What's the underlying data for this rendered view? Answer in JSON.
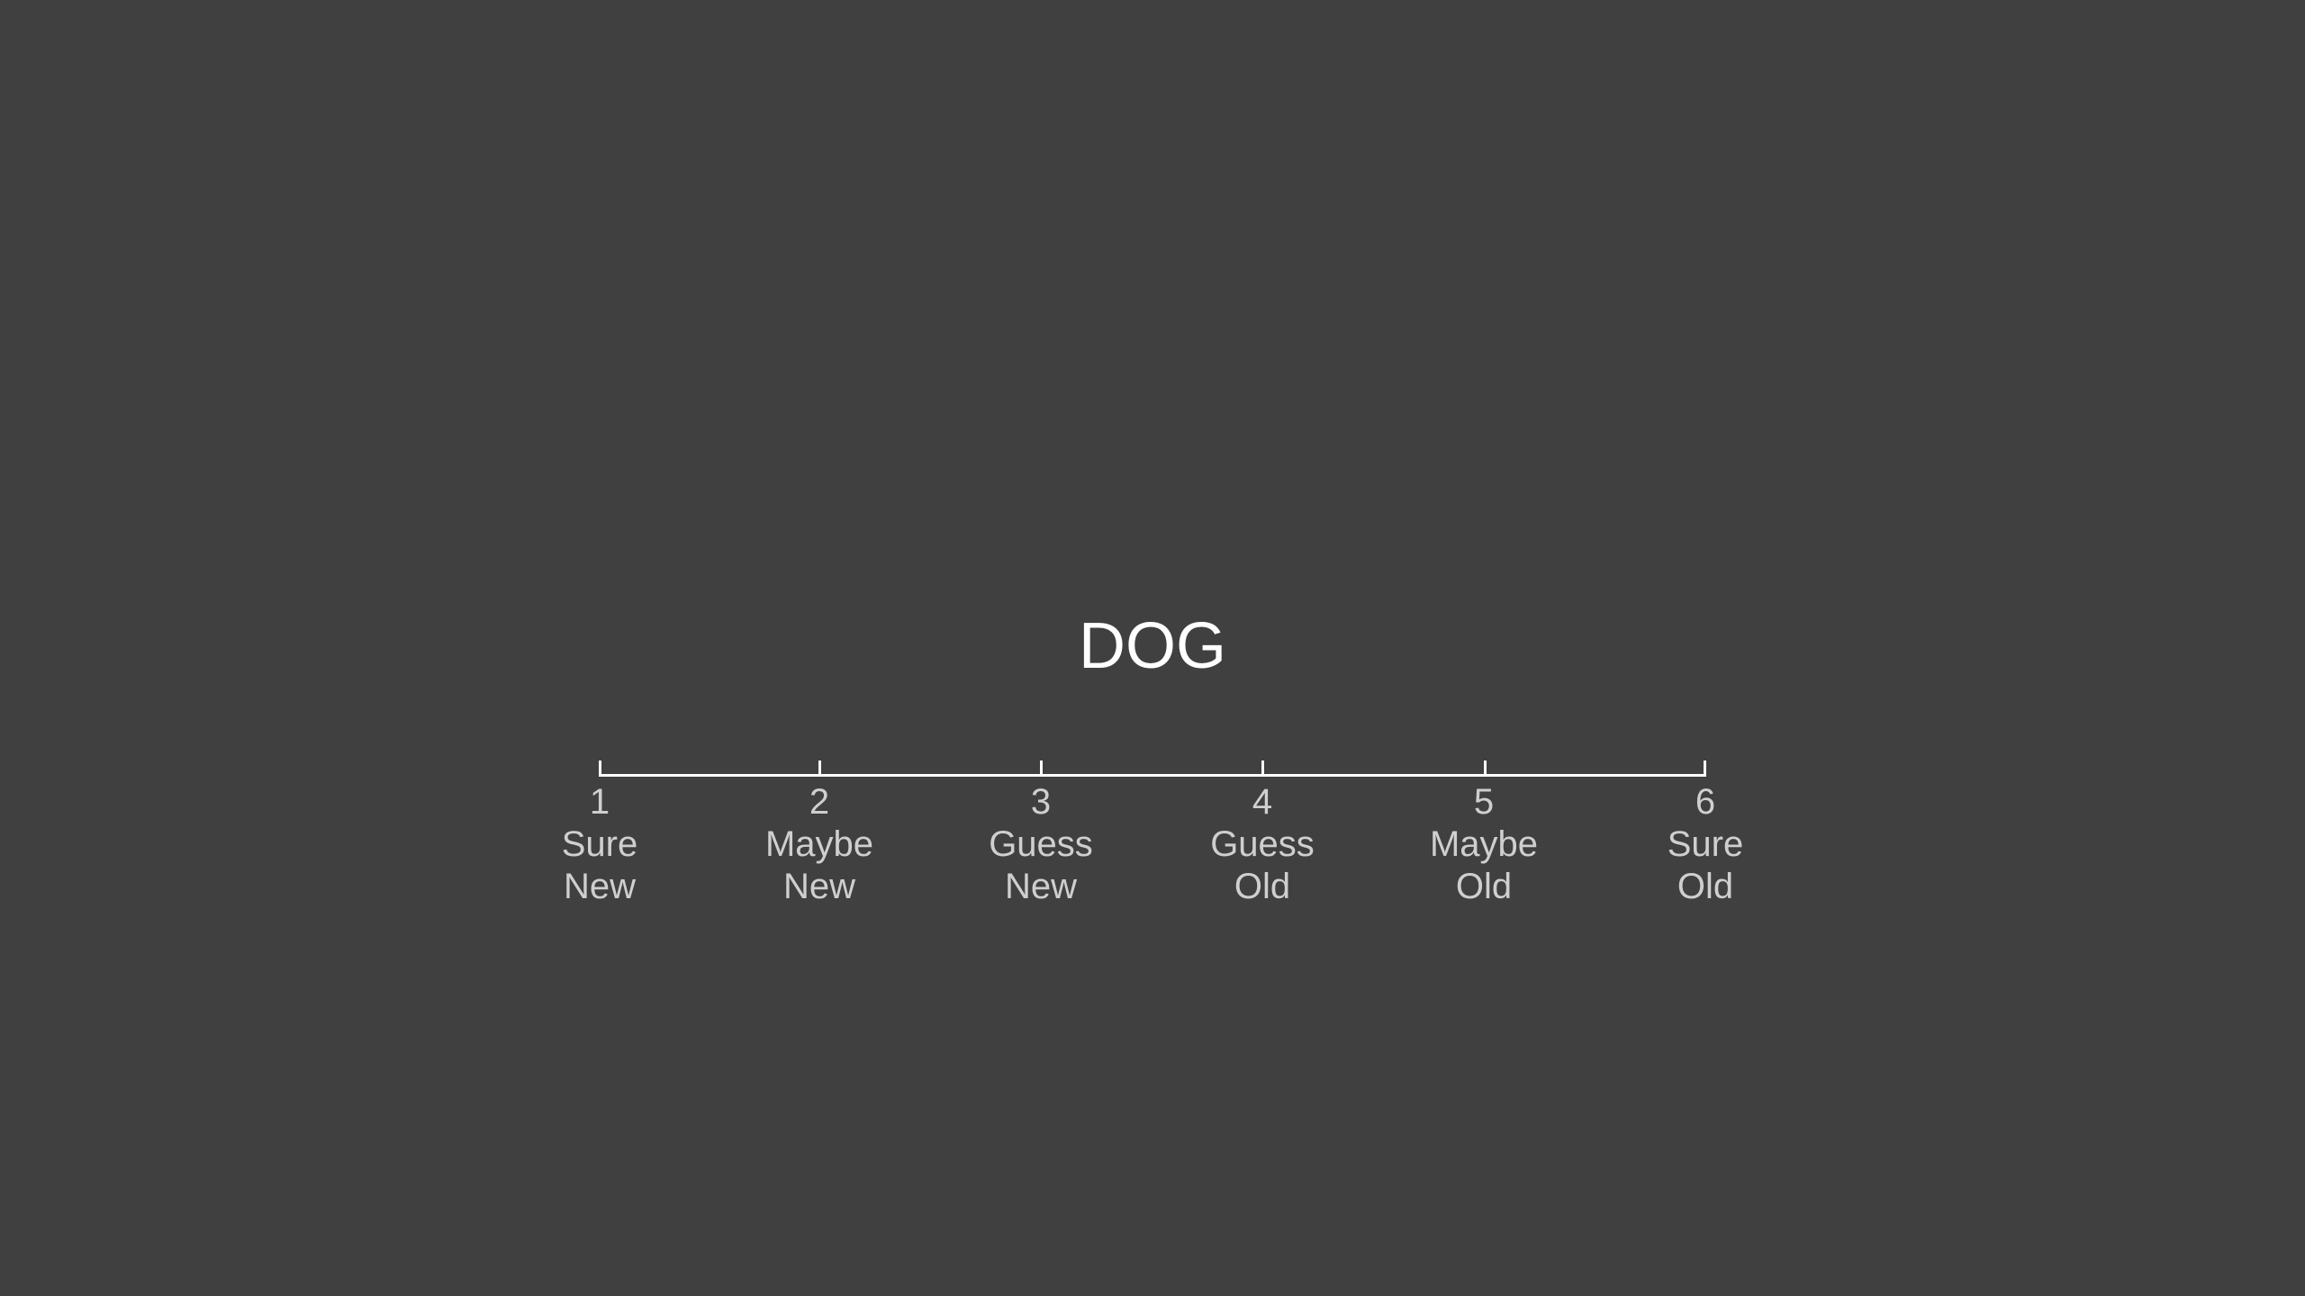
{
  "stimulus": {
    "word": "DOG"
  },
  "rating_scale": {
    "options": [
      {
        "number": "1",
        "line1": "Sure",
        "line2": "New"
      },
      {
        "number": "2",
        "line1": "Maybe",
        "line2": "New"
      },
      {
        "number": "3",
        "line1": "Guess",
        "line2": "New"
      },
      {
        "number": "4",
        "line1": "Guess",
        "line2": "Old"
      },
      {
        "number": "5",
        "line1": "Maybe",
        "line2": "Old"
      },
      {
        "number": "6",
        "line1": "Sure",
        "line2": "Old"
      }
    ]
  },
  "colors": {
    "background": "#404040",
    "stimulus_text": "#ffffff",
    "scale_line": "#ffffff",
    "option_text": "#cfcfcf"
  }
}
